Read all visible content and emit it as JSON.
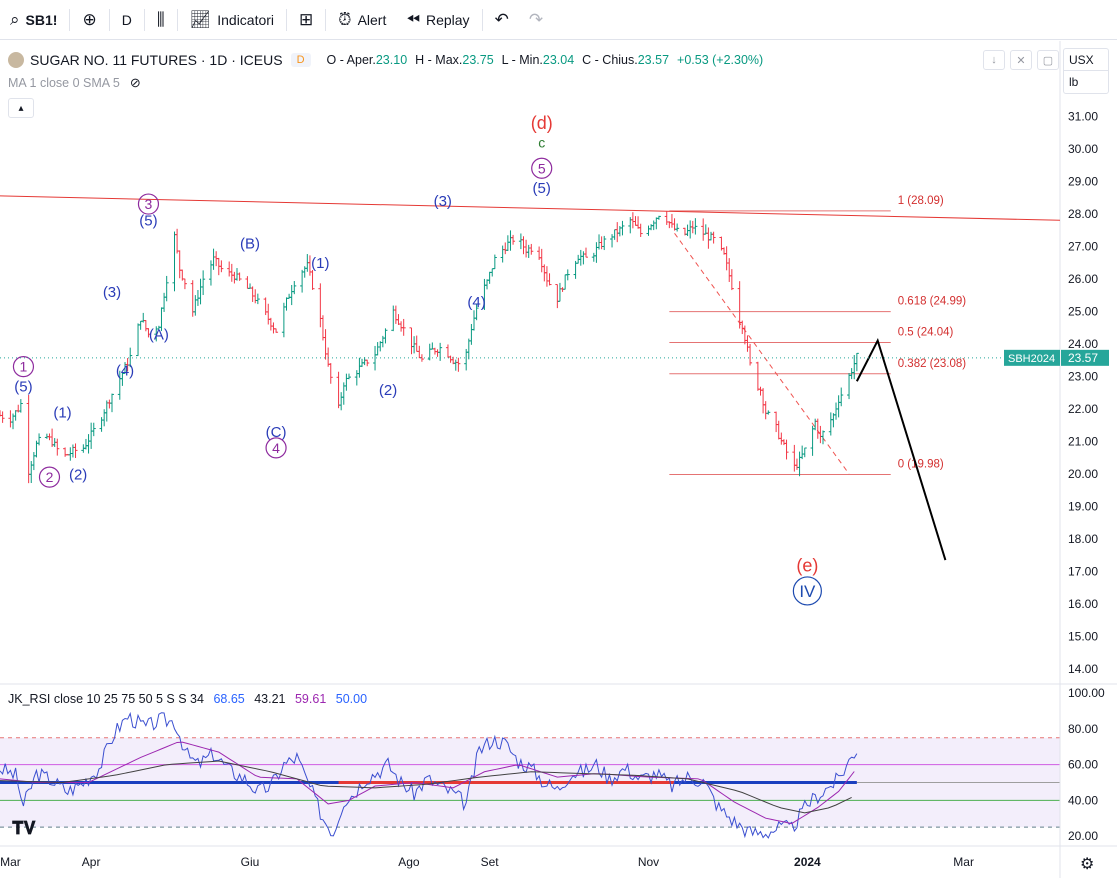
{
  "toolbar": {
    "symbol": "SB1!",
    "interval": "D",
    "indicators_label": "Indicatori",
    "alert_label": "Alert",
    "replay_label": "Replay"
  },
  "legend": {
    "symbol_title": "SUGAR NO. 11 FUTURES · 1D · ICEUS",
    "badge": "D",
    "o_key": "O - Aper.",
    "o_val": "23.10",
    "h_key": "H - Max.",
    "h_val": "23.75",
    "l_key": "L - Min.",
    "l_val": "23.04",
    "c_key": "C - Chius.",
    "c_val": "23.57",
    "change": "+0.53 (+2.30%)",
    "ma": "MA 1 close 0 SMA 5"
  },
  "units": {
    "currency": "USX",
    "measure": "lb"
  },
  "rsi_legend": {
    "name": "JK_RSI close 10 25 75 50 5 S S 34",
    "v1": "68.65",
    "v2": "43.21",
    "v3": "59.61",
    "v4": "50.00"
  },
  "colors": {
    "up": "#089981",
    "down": "#f23645",
    "wave_blue": "#2a3cb8",
    "wave_purple": "#8e2b9e",
    "fib": "#e57373",
    "price_tag": "#26a69a",
    "rsi_fill": "#f3eefb"
  },
  "chart_data": [
    {
      "type": "line",
      "title": "SUGAR NO. 11 FUTURES · 1D · ICEUS",
      "y_axis": {
        "range": [
          13.6,
          31.5
        ],
        "ticks": [
          "31.00",
          "30.00",
          "29.00",
          "28.00",
          "27.00",
          "26.00",
          "25.00",
          "24.00",
          "23.00",
          "22.00",
          "21.00",
          "20.00",
          "19.00",
          "18.00",
          "17.00",
          "16.00",
          "15.00",
          "14.00"
        ]
      },
      "x_axis": {
        "ticks": [
          {
            "label": "Mar",
            "day": 0
          },
          {
            "label": "Apr",
            "day": 31
          },
          {
            "label": "Giu",
            "day": 92
          },
          {
            "label": "Ago",
            "day": 153
          },
          {
            "label": "Set",
            "day": 184
          },
          {
            "label": "Nov",
            "day": 245
          },
          {
            "label": "2024",
            "day": 306
          },
          {
            "label": "Mar",
            "day": 366
          }
        ],
        "range": [
          -4,
          403
        ]
      },
      "price_path": [
        [
          -4,
          21.8
        ],
        [
          0,
          21.7
        ],
        [
          3,
          22.0
        ],
        [
          5,
          22.3
        ],
        [
          7,
          20.1
        ],
        [
          10,
          20.9
        ],
        [
          13,
          21.2
        ],
        [
          16,
          21.0
        ],
        [
          20,
          20.5
        ],
        [
          24,
          20.7
        ],
        [
          28,
          20.8
        ],
        [
          31,
          21.2
        ],
        [
          34,
          21.6
        ],
        [
          38,
          22.3
        ],
        [
          43,
          23.1
        ],
        [
          46,
          23.6
        ],
        [
          50,
          24.8
        ],
        [
          53,
          24.3
        ],
        [
          57,
          24.6
        ],
        [
          60,
          26.0
        ],
        [
          63,
          27.3
        ],
        [
          65,
          26.3
        ],
        [
          68,
          25.7
        ],
        [
          70,
          25.0
        ],
        [
          74,
          26.0
        ],
        [
          78,
          26.6
        ],
        [
          82,
          26.2
        ],
        [
          86,
          26.1
        ],
        [
          90,
          25.8
        ],
        [
          94,
          25.4
        ],
        [
          98,
          24.9
        ],
        [
          102,
          24.4
        ],
        [
          106,
          25.3
        ],
        [
          110,
          26.1
        ],
        [
          114,
          26.4
        ],
        [
          118,
          25.2
        ],
        [
          122,
          23.3
        ],
        [
          124,
          22.6
        ],
        [
          126,
          22.0
        ],
        [
          128,
          22.8
        ],
        [
          132,
          23.1
        ],
        [
          136,
          23.4
        ],
        [
          140,
          23.7
        ],
        [
          144,
          24.4
        ],
        [
          147,
          25.0
        ],
        [
          150,
          24.6
        ],
        [
          154,
          24.0
        ],
        [
          158,
          23.5
        ],
        [
          162,
          23.8
        ],
        [
          166,
          23.9
        ],
        [
          170,
          23.5
        ],
        [
          174,
          23.3
        ],
        [
          177,
          24.5
        ],
        [
          180,
          25.4
        ],
        [
          183,
          25.9
        ],
        [
          186,
          26.6
        ],
        [
          190,
          27.0
        ],
        [
          194,
          27.3
        ],
        [
          198,
          26.9
        ],
        [
          202,
          27.0
        ],
        [
          206,
          26.0
        ],
        [
          210,
          25.4
        ],
        [
          214,
          26.2
        ],
        [
          218,
          26.7
        ],
        [
          222,
          26.6
        ],
        [
          226,
          27.0
        ],
        [
          230,
          27.3
        ],
        [
          234,
          27.5
        ],
        [
          238,
          27.8
        ],
        [
          242,
          27.4
        ],
        [
          246,
          27.7
        ],
        [
          250,
          28.1
        ],
        [
          254,
          27.6
        ],
        [
          258,
          27.3
        ],
        [
          262,
          27.6
        ],
        [
          266,
          27.4
        ],
        [
          270,
          27.2
        ],
        [
          274,
          26.7
        ],
        [
          277,
          25.8
        ],
        [
          279,
          24.9
        ],
        [
          281,
          24.6
        ],
        [
          283,
          23.8
        ],
        [
          285,
          22.9
        ],
        [
          288,
          22.6
        ],
        [
          290,
          21.9
        ],
        [
          293,
          21.6
        ],
        [
          296,
          21.0
        ],
        [
          299,
          20.5
        ],
        [
          301,
          20.2
        ],
        [
          303,
          20.4
        ],
        [
          306,
          20.9
        ],
        [
          309,
          21.6
        ],
        [
          311,
          21.1
        ],
        [
          313,
          21.4
        ],
        [
          316,
          21.8
        ],
        [
          318,
          22.3
        ],
        [
          320,
          22.6
        ],
        [
          323,
          23.2
        ],
        [
          325,
          23.6
        ]
      ],
      "fib_levels": [
        {
          "label": "1 (28.09)",
          "value": 28.09
        },
        {
          "label": "0.618 (24.99)",
          "value": 24.99
        },
        {
          "label": "0.5 (24.04)",
          "value": 24.04
        },
        {
          "label": "0.382 (23.08)",
          "value": 23.08
        },
        {
          "label": "0 (19.98)",
          "value": 19.98
        }
      ],
      "trendline": {
        "start": [
          -4,
          28.55
        ],
        "end": [
          403,
          27.8
        ]
      },
      "projection": {
        "points": [
          [
            325,
            22.85
          ],
          [
            333,
            24.1
          ],
          [
            359,
            17.35
          ]
        ]
      },
      "dashed_line": {
        "points": [
          [
            255,
            27.4
          ],
          [
            322,
            20.0
          ]
        ]
      },
      "current_price": {
        "label": "SBH2024",
        "value": "23.57",
        "y": 23.57
      },
      "wave_labels": [
        {
          "text": "1",
          "x": 5,
          "y": 23.3,
          "style": "circle-purple"
        },
        {
          "text": "(5)",
          "x": 5,
          "y": 22.7,
          "style": "blue"
        },
        {
          "text": "2",
          "x": 15,
          "y": 19.9,
          "style": "circle-purple"
        },
        {
          "text": "(2)",
          "x": 26,
          "y": 20.0,
          "style": "blue"
        },
        {
          "text": "(1)",
          "x": 20,
          "y": 21.9,
          "style": "blue"
        },
        {
          "text": "(3)",
          "x": 39,
          "y": 25.6,
          "style": "blue"
        },
        {
          "text": "(4)",
          "x": 44,
          "y": 23.2,
          "style": "blue"
        },
        {
          "text": "3",
          "x": 53,
          "y": 28.3,
          "style": "circle-purple"
        },
        {
          "text": "(5)",
          "x": 53,
          "y": 27.8,
          "style": "blue"
        },
        {
          "text": "(A)",
          "x": 57,
          "y": 24.3,
          "style": "blue"
        },
        {
          "text": "(B)",
          "x": 92,
          "y": 27.1,
          "style": "blue"
        },
        {
          "text": "(C)",
          "x": 102,
          "y": 21.3,
          "style": "blue"
        },
        {
          "text": "4",
          "x": 102,
          "y": 20.8,
          "style": "circle-purple"
        },
        {
          "text": "(1)",
          "x": 119,
          "y": 26.5,
          "style": "blue"
        },
        {
          "text": "(2)",
          "x": 145,
          "y": 22.6,
          "style": "blue"
        },
        {
          "text": "(3)",
          "x": 166,
          "y": 28.4,
          "style": "blue"
        },
        {
          "text": "(4)",
          "x": 179,
          "y": 25.3,
          "style": "blue"
        },
        {
          "text": "(d)",
          "x": 204,
          "y": 30.8,
          "style": "red"
        },
        {
          "text": "c",
          "x": 204,
          "y": 30.2,
          "style": "green"
        },
        {
          "text": "5",
          "x": 204,
          "y": 29.4,
          "style": "circle-purple"
        },
        {
          "text": "(5)",
          "x": 204,
          "y": 28.8,
          "style": "blue"
        },
        {
          "text": "(e)",
          "x": 306,
          "y": 17.2,
          "style": "red"
        },
        {
          "text": "IV",
          "x": 306,
          "y": 16.4,
          "style": "circle-blue"
        }
      ]
    },
    {
      "type": "line",
      "title": "JK_RSI close 10 25 75 50 5 S S 34",
      "y_axis": {
        "range": [
          15,
          104
        ],
        "ticks": [
          "100.00",
          "80.00",
          "60.00",
          "40.00",
          "20.00"
        ]
      },
      "levels": [
        75,
        60,
        50,
        40,
        25
      ],
      "rsi_path": [
        [
          -4,
          58
        ],
        [
          2,
          54
        ],
        [
          5,
          37
        ],
        [
          10,
          55
        ],
        [
          15,
          52
        ],
        [
          22,
          45
        ],
        [
          28,
          50
        ],
        [
          34,
          58
        ],
        [
          40,
          78
        ],
        [
          45,
          87
        ],
        [
          52,
          81
        ],
        [
          58,
          85
        ],
        [
          63,
          84
        ],
        [
          68,
          65
        ],
        [
          72,
          60
        ],
        [
          78,
          66
        ],
        [
          84,
          57
        ],
        [
          90,
          52
        ],
        [
          95,
          45
        ],
        [
          100,
          48
        ],
        [
          105,
          60
        ],
        [
          110,
          64
        ],
        [
          116,
          44
        ],
        [
          120,
          30
        ],
        [
          124,
          22
        ],
        [
          128,
          40
        ],
        [
          132,
          44
        ],
        [
          136,
          52
        ],
        [
          140,
          55
        ],
        [
          145,
          60
        ],
        [
          150,
          50
        ],
        [
          155,
          44
        ],
        [
          160,
          52
        ],
        [
          165,
          48
        ],
        [
          170,
          44
        ],
        [
          175,
          38
        ],
        [
          180,
          68
        ],
        [
          185,
          74
        ],
        [
          190,
          72
        ],
        [
          195,
          62
        ],
        [
          200,
          58
        ],
        [
          205,
          50
        ],
        [
          210,
          46
        ],
        [
          215,
          55
        ],
        [
          220,
          56
        ],
        [
          225,
          60
        ],
        [
          230,
          52
        ],
        [
          236,
          58
        ],
        [
          242,
          52
        ],
        [
          248,
          55
        ],
        [
          254,
          48
        ],
        [
          260,
          53
        ],
        [
          266,
          51
        ],
        [
          272,
          36
        ],
        [
          278,
          28
        ],
        [
          284,
          22
        ],
        [
          290,
          22
        ],
        [
          296,
          25
        ],
        [
          300,
          24
        ],
        [
          306,
          38
        ],
        [
          312,
          45
        ],
        [
          318,
          52
        ],
        [
          322,
          62
        ],
        [
          325,
          69
        ]
      ],
      "signal_path": [
        [
          -4,
          52
        ],
        [
          10,
          50
        ],
        [
          30,
          50
        ],
        [
          50,
          64
        ],
        [
          65,
          73
        ],
        [
          80,
          67
        ],
        [
          95,
          53
        ],
        [
          110,
          52
        ],
        [
          122,
          38
        ],
        [
          130,
          40
        ],
        [
          140,
          48
        ],
        [
          155,
          50
        ],
        [
          170,
          47
        ],
        [
          182,
          56
        ],
        [
          195,
          60
        ],
        [
          210,
          53
        ],
        [
          225,
          55
        ],
        [
          245,
          53
        ],
        [
          265,
          52
        ],
        [
          278,
          39
        ],
        [
          290,
          30
        ],
        [
          300,
          27
        ],
        [
          310,
          36
        ],
        [
          318,
          45
        ],
        [
          325,
          58
        ]
      ],
      "slow_path": [
        [
          -4,
          51
        ],
        [
          20,
          50
        ],
        [
          40,
          54
        ],
        [
          60,
          60
        ],
        [
          80,
          62
        ],
        [
          100,
          56
        ],
        [
          120,
          48
        ],
        [
          140,
          47
        ],
        [
          160,
          49
        ],
        [
          180,
          53
        ],
        [
          200,
          56
        ],
        [
          220,
          55
        ],
        [
          240,
          54
        ],
        [
          260,
          52
        ],
        [
          280,
          45
        ],
        [
          295,
          36
        ],
        [
          305,
          33
        ],
        [
          315,
          36
        ],
        [
          325,
          43
        ]
      ],
      "flat_lines": [
        {
          "color": "blue",
          "from": -4,
          "to": 253,
          "value": 50
        },
        {
          "color": "red",
          "from": 126,
          "to": 323,
          "value": 50
        },
        {
          "color": "blue",
          "from": 255,
          "to": 325,
          "value": 50
        }
      ]
    }
  ]
}
